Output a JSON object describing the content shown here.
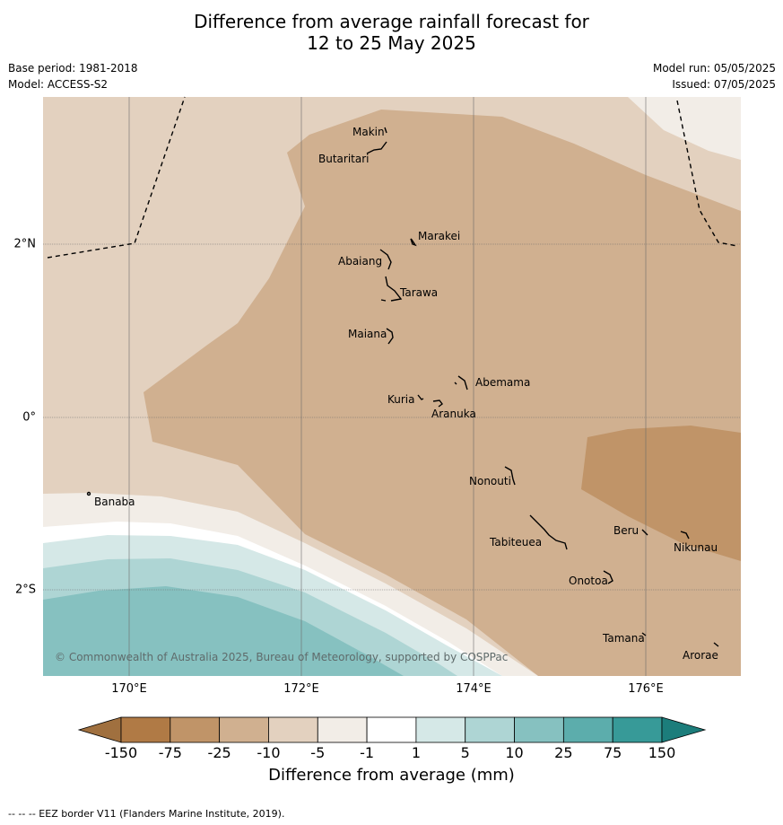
{
  "title": {
    "line1": "Difference from average rainfall forecast for",
    "line2": "12 to 25 May 2025"
  },
  "meta": {
    "base_period": "Base period: 1981-2018",
    "model": "Model: ACCESS-S2",
    "model_run": "Model run: 05/05/2025",
    "issued": "Issued: 07/05/2025"
  },
  "axes": {
    "lon_labels": [
      "170°E",
      "172°E",
      "174°E",
      "176°E"
    ],
    "lat_labels": [
      "2°N",
      "0°",
      "2°S"
    ]
  },
  "places": [
    "Makin",
    "Butaritari",
    "Marakei",
    "Abaiang",
    "Tarawa",
    "Maiana",
    "Abemama",
    "Kuria",
    "Aranuka",
    "Nonouti",
    "Banaba",
    "Beru",
    "Nikunau",
    "Tabiteuea",
    "Onotoa",
    "Tamana",
    "Arorae"
  ],
  "copyright": "© Commonwealth of Australia 2025, Bureau of Meteorology, supported by COSPPac",
  "colorbar": {
    "ticks": [
      "-150",
      "-75",
      "-25",
      "-10",
      "-5",
      "-1",
      "1",
      "5",
      "10",
      "25",
      "75",
      "150"
    ],
    "colors": [
      "#a0703f",
      "#b07a45",
      "#c09468",
      "#d0b090",
      "#e3d1bf",
      "#f2ede7",
      "#ffffff",
      "#d5e8e7",
      "#aed5d4",
      "#86c1c0",
      "#5cadac",
      "#379a98",
      "#1c7d7b"
    ],
    "title": "Difference from average (mm)"
  },
  "eez_legend": "--  --  -- EEZ border V11 (Flanders Marine Institute, 2019)."
}
